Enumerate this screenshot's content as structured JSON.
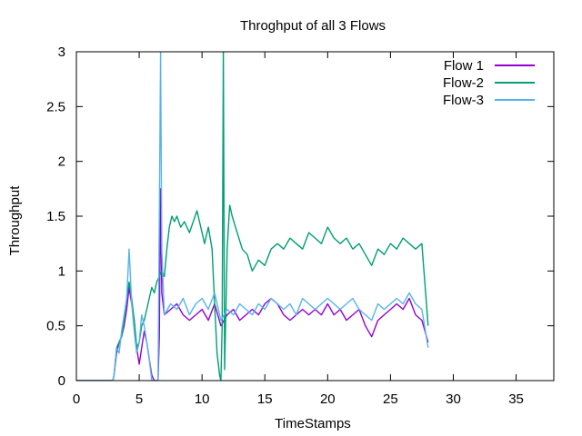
{
  "chart_data": {
    "type": "line",
    "title": "Throghput of all 3 Flows",
    "xlabel": "TimeStamps",
    "ylabel": "Throughput",
    "xlim": [
      0,
      38
    ],
    "ylim": [
      0,
      3
    ],
    "x_ticks": [
      0,
      5,
      10,
      15,
      20,
      25,
      30,
      35
    ],
    "y_ticks": [
      0,
      0.5,
      1,
      1.5,
      2,
      2.5,
      3
    ],
    "y_tick_labels": [
      "0",
      "0.5",
      "1",
      "1.5",
      "2",
      "2.5",
      "3"
    ],
    "grid": false,
    "legend_position": "top-right",
    "series": [
      {
        "name": "Flow 1",
        "color": "#9400D3",
        "points": [
          [
            0,
            0
          ],
          [
            2.9,
            0
          ],
          [
            3.0,
            0.05
          ],
          [
            3.2,
            0.25
          ],
          [
            3.4,
            0.35
          ],
          [
            3.6,
            0.4
          ],
          [
            3.8,
            0.5
          ],
          [
            4.0,
            0.65
          ],
          [
            4.2,
            0.85
          ],
          [
            4.4,
            0.7
          ],
          [
            4.6,
            0.55
          ],
          [
            4.8,
            0.3
          ],
          [
            5.0,
            0.15
          ],
          [
            5.2,
            0.3
          ],
          [
            5.4,
            0.45
          ],
          [
            5.6,
            0.35
          ],
          [
            5.8,
            0.2
          ],
          [
            6.0,
            0.05
          ],
          [
            6.2,
            0
          ],
          [
            6.5,
            0
          ],
          [
            6.6,
            0.4
          ],
          [
            6.7,
            1.75
          ],
          [
            6.8,
            0.8
          ],
          [
            7.0,
            0.6
          ],
          [
            7.5,
            0.65
          ],
          [
            8.0,
            0.7
          ],
          [
            8.5,
            0.6
          ],
          [
            9.0,
            0.55
          ],
          [
            9.5,
            0.6
          ],
          [
            10.0,
            0.65
          ],
          [
            10.5,
            0.55
          ],
          [
            11.0,
            0.7
          ],
          [
            11.5,
            0.5
          ],
          [
            12.0,
            0.6
          ],
          [
            12.5,
            0.65
          ],
          [
            13.0,
            0.55
          ],
          [
            13.5,
            0.6
          ],
          [
            14.0,
            0.65
          ],
          [
            14.5,
            0.6
          ],
          [
            15.0,
            0.7
          ],
          [
            15.5,
            0.75
          ],
          [
            16.0,
            0.7
          ],
          [
            16.5,
            0.6
          ],
          [
            17.0,
            0.55
          ],
          [
            17.5,
            0.6
          ],
          [
            18.0,
            0.65
          ],
          [
            18.5,
            0.6
          ],
          [
            19.0,
            0.65
          ],
          [
            19.5,
            0.6
          ],
          [
            20.0,
            0.7
          ],
          [
            20.5,
            0.6
          ],
          [
            21.0,
            0.65
          ],
          [
            21.5,
            0.55
          ],
          [
            22.0,
            0.6
          ],
          [
            22.5,
            0.65
          ],
          [
            23.0,
            0.5
          ],
          [
            23.5,
            0.4
          ],
          [
            24.0,
            0.55
          ],
          [
            24.5,
            0.6
          ],
          [
            25.0,
            0.65
          ],
          [
            25.5,
            0.7
          ],
          [
            26.0,
            0.65
          ],
          [
            26.5,
            0.75
          ],
          [
            27.0,
            0.6
          ],
          [
            27.5,
            0.55
          ],
          [
            28.0,
            0.35
          ]
        ]
      },
      {
        "name": "Flow-2",
        "color": "#009E73",
        "points": [
          [
            0,
            0
          ],
          [
            2.9,
            0
          ],
          [
            3.0,
            0.05
          ],
          [
            3.2,
            0.3
          ],
          [
            3.4,
            0.35
          ],
          [
            3.6,
            0.4
          ],
          [
            3.8,
            0.55
          ],
          [
            4.0,
            0.75
          ],
          [
            4.2,
            0.9
          ],
          [
            4.4,
            0.75
          ],
          [
            4.6,
            0.55
          ],
          [
            4.8,
            0.3
          ],
          [
            5.0,
            0.35
          ],
          [
            5.2,
            0.5
          ],
          [
            5.4,
            0.55
          ],
          [
            5.6,
            0.65
          ],
          [
            5.8,
            0.75
          ],
          [
            6.0,
            0.85
          ],
          [
            6.2,
            0.8
          ],
          [
            6.4,
            0.9
          ],
          [
            6.6,
            0.95
          ],
          [
            6.8,
            1.0
          ],
          [
            7.0,
            0.95
          ],
          [
            7.2,
            1.2
          ],
          [
            7.4,
            1.4
          ],
          [
            7.6,
            1.5
          ],
          [
            7.8,
            1.45
          ],
          [
            8.0,
            1.5
          ],
          [
            8.3,
            1.4
          ],
          [
            8.6,
            1.45
          ],
          [
            9.0,
            1.35
          ],
          [
            9.3,
            1.45
          ],
          [
            9.6,
            1.55
          ],
          [
            9.9,
            1.4
          ],
          [
            10.2,
            1.25
          ],
          [
            10.5,
            1.4
          ],
          [
            10.8,
            1.2
          ],
          [
            11.0,
            0.7
          ],
          [
            11.2,
            0.25
          ],
          [
            11.4,
            0.05
          ],
          [
            11.5,
            0
          ],
          [
            11.6,
            0.5
          ],
          [
            11.7,
            3.0
          ],
          [
            11.8,
            0.1
          ],
          [
            12.0,
            1.2
          ],
          [
            12.2,
            1.6
          ],
          [
            12.4,
            1.5
          ],
          [
            12.8,
            1.35
          ],
          [
            13.2,
            1.2
          ],
          [
            13.6,
            1.15
          ],
          [
            14.0,
            1.0
          ],
          [
            14.5,
            1.1
          ],
          [
            15.0,
            1.05
          ],
          [
            15.5,
            1.2
          ],
          [
            16.0,
            1.25
          ],
          [
            16.5,
            1.2
          ],
          [
            17.0,
            1.3
          ],
          [
            17.5,
            1.25
          ],
          [
            18.0,
            1.2
          ],
          [
            18.5,
            1.35
          ],
          [
            19.0,
            1.3
          ],
          [
            19.5,
            1.25
          ],
          [
            20.0,
            1.4
          ],
          [
            20.5,
            1.3
          ],
          [
            21.0,
            1.25
          ],
          [
            21.5,
            1.3
          ],
          [
            22.0,
            1.2
          ],
          [
            22.5,
            1.25
          ],
          [
            23.0,
            1.15
          ],
          [
            23.5,
            1.05
          ],
          [
            24.0,
            1.2
          ],
          [
            24.5,
            1.15
          ],
          [
            25.0,
            1.25
          ],
          [
            25.5,
            1.2
          ],
          [
            26.0,
            1.3
          ],
          [
            26.5,
            1.25
          ],
          [
            27.0,
            1.2
          ],
          [
            27.5,
            1.25
          ],
          [
            28.0,
            0.5
          ]
        ]
      },
      {
        "name": "Flow-3",
        "color": "#56B4E9",
        "points": [
          [
            0,
            0
          ],
          [
            2.9,
            0
          ],
          [
            3.0,
            0.05
          ],
          [
            3.2,
            0.3
          ],
          [
            3.4,
            0.25
          ],
          [
            3.6,
            0.45
          ],
          [
            3.8,
            0.6
          ],
          [
            4.0,
            0.75
          ],
          [
            4.2,
            1.2
          ],
          [
            4.4,
            0.7
          ],
          [
            4.6,
            0.45
          ],
          [
            4.8,
            0.25
          ],
          [
            5.0,
            0.35
          ],
          [
            5.2,
            0.6
          ],
          [
            5.4,
            0.5
          ],
          [
            5.6,
            0.35
          ],
          [
            5.8,
            0.2
          ],
          [
            6.0,
            0
          ],
          [
            6.5,
            0
          ],
          [
            6.6,
            1.5
          ],
          [
            6.7,
            3.0
          ],
          [
            6.8,
            1.2
          ],
          [
            7.0,
            0.6
          ],
          [
            7.5,
            0.7
          ],
          [
            8.0,
            0.65
          ],
          [
            8.5,
            0.75
          ],
          [
            9.0,
            0.6
          ],
          [
            9.5,
            0.7
          ],
          [
            10.0,
            0.75
          ],
          [
            10.5,
            0.65
          ],
          [
            11.0,
            0.8
          ],
          [
            11.5,
            0.55
          ],
          [
            12.0,
            0.65
          ],
          [
            12.5,
            0.6
          ],
          [
            13.0,
            0.7
          ],
          [
            13.5,
            0.65
          ],
          [
            14.0,
            0.6
          ],
          [
            14.5,
            0.7
          ],
          [
            15.0,
            0.65
          ],
          [
            15.5,
            0.75
          ],
          [
            16.0,
            0.7
          ],
          [
            16.5,
            0.65
          ],
          [
            17.0,
            0.7
          ],
          [
            17.5,
            0.6
          ],
          [
            18.0,
            0.75
          ],
          [
            18.5,
            0.7
          ],
          [
            19.0,
            0.65
          ],
          [
            19.5,
            0.7
          ],
          [
            20.0,
            0.75
          ],
          [
            20.5,
            0.7
          ],
          [
            21.0,
            0.65
          ],
          [
            21.5,
            0.7
          ],
          [
            22.0,
            0.75
          ],
          [
            22.5,
            0.65
          ],
          [
            23.0,
            0.6
          ],
          [
            23.5,
            0.55
          ],
          [
            24.0,
            0.7
          ],
          [
            24.5,
            0.65
          ],
          [
            25.0,
            0.7
          ],
          [
            25.5,
            0.75
          ],
          [
            26.0,
            0.7
          ],
          [
            26.5,
            0.8
          ],
          [
            27.0,
            0.7
          ],
          [
            27.5,
            0.65
          ],
          [
            28.0,
            0.3
          ]
        ]
      }
    ]
  }
}
